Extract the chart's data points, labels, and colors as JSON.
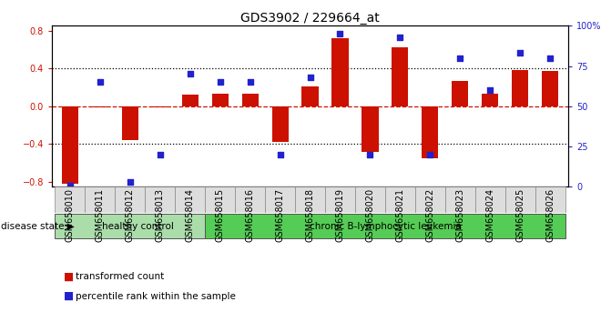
{
  "title": "GDS3902 / 229664_at",
  "samples": [
    "GSM658010",
    "GSM658011",
    "GSM658012",
    "GSM658013",
    "GSM658014",
    "GSM658015",
    "GSM658016",
    "GSM658017",
    "GSM658018",
    "GSM658019",
    "GSM658020",
    "GSM658021",
    "GSM658022",
    "GSM658023",
    "GSM658024",
    "GSM658025",
    "GSM658026"
  ],
  "bar_values": [
    -0.82,
    -0.01,
    -0.36,
    -0.01,
    0.12,
    0.13,
    0.13,
    -0.38,
    0.21,
    0.72,
    -0.48,
    0.62,
    -0.55,
    0.27,
    0.13,
    0.38,
    0.37
  ],
  "dot_values": [
    1,
    65,
    3,
    20,
    70,
    65,
    65,
    20,
    68,
    95,
    20,
    93,
    20,
    80,
    60,
    83,
    80
  ],
  "healthy_count": 5,
  "bar_color": "#CC1100",
  "dot_color": "#2222CC",
  "ylim_left": [
    -0.85,
    0.85
  ],
  "ylim_right": [
    0,
    100
  ],
  "yticks_left": [
    -0.8,
    -0.4,
    0.0,
    0.4,
    0.8
  ],
  "yticks_right": [
    0,
    25,
    50,
    75,
    100
  ],
  "ytick_labels_right": [
    "0",
    "25",
    "50",
    "75",
    "100%"
  ],
  "hline_dotted_values": [
    -0.4,
    0.4
  ],
  "hline_dashed_value": 0.0,
  "disease_state_label": "disease state",
  "group1_label": "healthy control",
  "group2_label": "chronic B-lymphocytic leukemia",
  "group1_color": "#AADDAA",
  "group2_color": "#55CC55",
  "legend1": "transformed count",
  "legend2": "percentile rank within the sample",
  "bar_width": 0.55,
  "title_fontsize": 10,
  "tick_fontsize": 7,
  "label_fontsize": 7.5
}
